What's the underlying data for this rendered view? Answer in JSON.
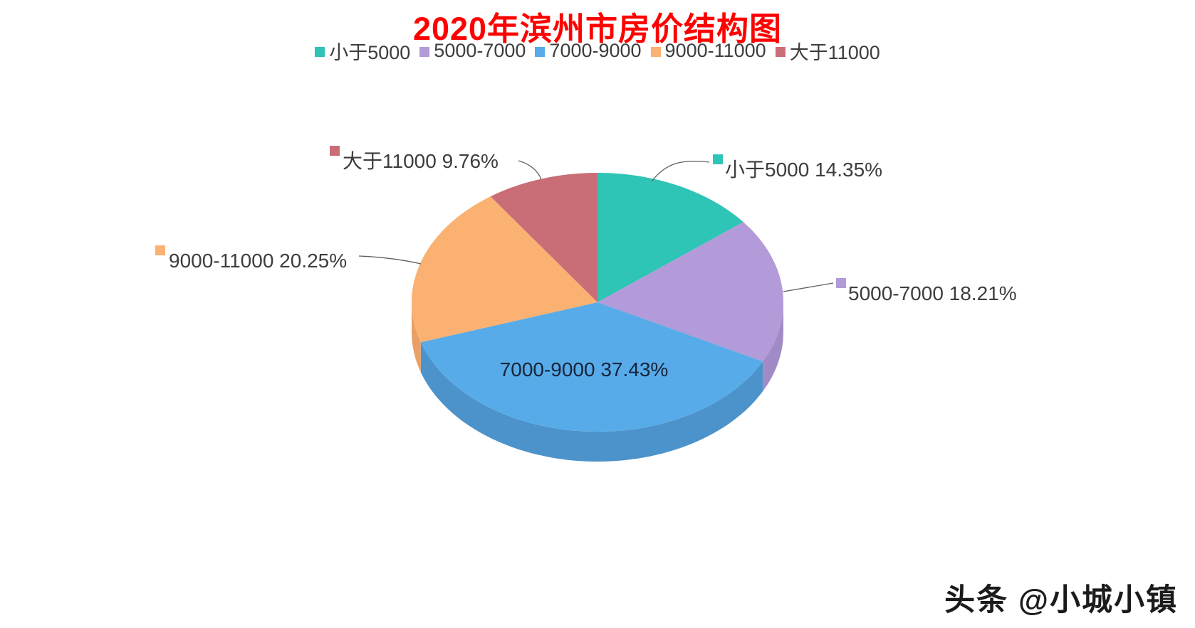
{
  "chart_data": {
    "type": "pie",
    "style": "3d",
    "title": "2020年滨州市房价结构图",
    "title_color": "#FE0000",
    "text_color": "#3D3D3D",
    "inside_label_color": "#17233A",
    "legend_position": "top",
    "label_format": "name value%",
    "series": [
      {
        "name": "小于5000",
        "value": 14.35,
        "color": "#2EC4B6",
        "side_color": "#26A89C"
      },
      {
        "name": "5000-7000",
        "value": 18.21,
        "color": "#B29BD8",
        "side_color": "#A18BC6"
      },
      {
        "name": "7000-9000",
        "value": 37.43,
        "color": "#57ABE8",
        "side_color": "#4C93CB"
      },
      {
        "name": "9000-11000",
        "value": 20.25,
        "color": "#FAB171",
        "side_color": "#E9A067"
      },
      {
        "name": "大于11000",
        "value": 9.76,
        "color": "#C96D77",
        "side_color": "#B05A64"
      }
    ]
  },
  "watermark": {
    "text": "头条 @小城小镇"
  }
}
